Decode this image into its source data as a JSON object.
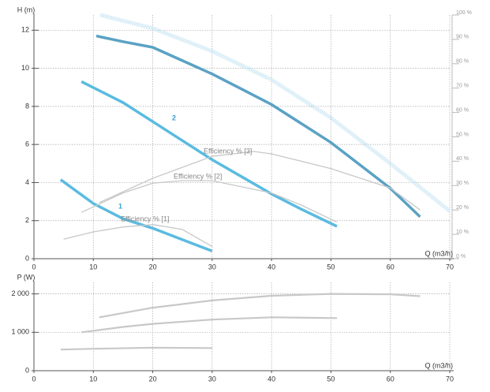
{
  "chart_data": [
    {
      "type": "line",
      "y_label": "H (m)",
      "x_label": "Q (m3/h)",
      "xlim": [
        0,
        70
      ],
      "xticks": [
        0,
        10,
        20,
        30,
        40,
        50,
        60,
        70
      ],
      "ylim": [
        0,
        12.8
      ],
      "yticks": [
        0,
        2,
        4,
        6,
        8,
        10,
        12
      ],
      "y2lim": [
        0,
        100
      ],
      "y2ticks": [
        {
          "value": 0,
          "label": "0 %"
        },
        {
          "value": 10,
          "label": "10 %"
        },
        {
          "value": 20,
          "label": "20 %"
        },
        {
          "value": 30,
          "label": "30 %"
        },
        {
          "value": 40,
          "label": "40 %"
        },
        {
          "value": 50,
          "label": "50 %"
        },
        {
          "value": 60,
          "label": "60 %"
        },
        {
          "value": 70,
          "label": "70 %"
        },
        {
          "value": 80,
          "label": "80 %"
        },
        {
          "value": 90,
          "label": "90 %"
        },
        {
          "value": 100,
          "label": "100 %"
        }
      ],
      "grid": true,
      "series": [
        {
          "name": "1",
          "color": "#5bbbe0",
          "x": [
            4.5,
            10,
            15,
            20,
            25,
            30
          ],
          "values": [
            4.15,
            2.9,
            2.1,
            1.6,
            1.0,
            0.4
          ]
        },
        {
          "name": "2",
          "color": "#5bbbe0",
          "x": [
            8,
            15,
            20,
            25,
            30,
            35,
            40,
            45,
            51
          ],
          "values": [
            9.3,
            8.2,
            7.2,
            6.2,
            5.2,
            4.3,
            3.4,
            2.6,
            1.7
          ]
        },
        {
          "color": "#5aa2c4",
          "x": [
            10.5,
            15,
            20,
            25,
            30,
            35,
            40,
            45,
            50,
            55,
            60,
            65
          ],
          "values": [
            11.7,
            11.4,
            11.1,
            10.4,
            9.7,
            8.9,
            8.1,
            7.1,
            6.1,
            4.9,
            3.7,
            2.2
          ]
        },
        {
          "color": "#c2e2f2",
          "line_style": "dotted",
          "x": [
            11.2,
            20,
            30,
            40,
            50,
            60,
            70
          ],
          "values": [
            12.8,
            12.1,
            10.9,
            9.4,
            7.4,
            5.0,
            2.5
          ]
        },
        {
          "name": "Efficiency % [1]",
          "color": "#c8c8c8",
          "axis": "y2",
          "x": [
            5,
            10,
            15,
            20,
            25,
            30
          ],
          "values": [
            8,
            11,
            13,
            14,
            12,
            5
          ]
        },
        {
          "name": "Efficiency % [2]",
          "color": "#c8c8c8",
          "axis": "y2",
          "x": [
            8,
            15,
            20,
            25,
            30,
            40,
            45,
            51
          ],
          "values": [
            19,
            27,
            31,
            32,
            32,
            27,
            22,
            15
          ]
        },
        {
          "name": "Efficiency % [3]",
          "color": "#c8c8c8",
          "axis": "y2",
          "x": [
            11,
            20,
            30,
            37,
            40,
            50,
            60,
            65
          ],
          "values": [
            23,
            33,
            42,
            44,
            43,
            37,
            29,
            20
          ]
        }
      ]
    },
    {
      "type": "line",
      "y_label": "P (W)",
      "x_label": "Q (m3/h)",
      "xlim": [
        0,
        70
      ],
      "xticks": [
        0,
        10,
        20,
        30,
        40,
        50,
        60,
        70
      ],
      "ylim": [
        0,
        2300
      ],
      "yticks": [
        0,
        {
          "value": 1000,
          "label": "1 000"
        },
        {
          "value": 2000,
          "label": "2 000"
        }
      ],
      "grid": true,
      "series": [
        {
          "color": "#c8c8c8",
          "x": [
            4.5,
            10,
            20,
            30
          ],
          "values": [
            550,
            570,
            600,
            590
          ]
        },
        {
          "color": "#c8c8c8",
          "x": [
            8,
            15,
            20,
            30,
            40,
            51
          ],
          "values": [
            1000,
            1140,
            1220,
            1330,
            1390,
            1370
          ]
        },
        {
          "color": "#c8c8c8",
          "x": [
            11,
            20,
            30,
            40,
            50,
            60,
            65
          ],
          "values": [
            1390,
            1640,
            1830,
            1950,
            2000,
            1990,
            1940
          ]
        }
      ]
    }
  ]
}
